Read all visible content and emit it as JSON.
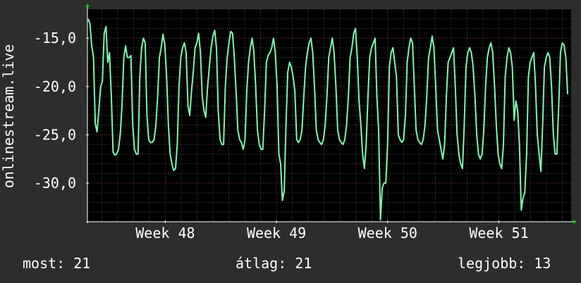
{
  "chart_data": {
    "type": "line",
    "ylabel": "onlinestream.live",
    "y_ticks": [
      -15.0,
      -20.0,
      -25.0,
      -30.0
    ],
    "y_tick_labels": [
      "-15,0",
      "-20,0",
      "-25,0",
      "-30,0"
    ],
    "ylim": [
      -34,
      -12
    ],
    "x_ticks": [
      {
        "label": "Week 48",
        "pos": 48
      },
      {
        "label": "Week 49",
        "pos": 49
      },
      {
        "label": "Week 50",
        "pos": 50
      },
      {
        "label": "Week 51",
        "pos": 51
      }
    ],
    "xlim": [
      47.3,
      51.65
    ],
    "grid": true,
    "colors": {
      "line": "#7ef7b0",
      "plot_bg": "#000000",
      "axis": "#ffffff",
      "arrow": "#00cc00",
      "minor_grid": "#4a4a4a",
      "major_grid": "#7a2e2e"
    },
    "series": [
      {
        "values": [
          -13.0,
          -13.5,
          -15.8,
          -17.0,
          -23.8,
          -24.7,
          -22.5,
          -20.0,
          -19.5,
          -14.5,
          -13.8,
          -17.5,
          -16.5,
          -21.0,
          -26.8,
          -27.1,
          -27.0,
          -26.5,
          -25.0,
          -22.0,
          -17.0,
          -15.8,
          -17.0,
          -17.0,
          -16.8,
          -24.0,
          -26.5,
          -27.0,
          -27.0,
          -19.0,
          -16.0,
          -15.0,
          -15.5,
          -23.0,
          -25.5,
          -25.8,
          -25.8,
          -25.5,
          -24.0,
          -21.0,
          -17.0,
          -16.0,
          -14.6,
          -15.7,
          -18.8,
          -24.0,
          -27.0,
          -28.0,
          -28.7,
          -28.5,
          -26.0,
          -20.0,
          -17.0,
          -16.0,
          -15.5,
          -16.5,
          -22.0,
          -23.0,
          -20.5,
          -18.5,
          -16.0,
          -15.5,
          -14.5,
          -16.5,
          -21.0,
          -22.5,
          -23.2,
          -20.0,
          -18.0,
          -16.0,
          -14.8,
          -14.2,
          -16.0,
          -22.5,
          -25.5,
          -26.0,
          -26.0,
          -20.0,
          -17.0,
          -15.5,
          -14.3,
          -14.5,
          -17.0,
          -20.5,
          -24.5,
          -25.5,
          -25.8,
          -26.5,
          -25.5,
          -20.5,
          -17.5,
          -16.0,
          -15.0,
          -16.5,
          -20.0,
          -24.5,
          -26.0,
          -26.5,
          -26.5,
          -22.5,
          -17.5,
          -16.8,
          -16.5,
          -16.0,
          -15.0,
          -16.5,
          -20.0,
          -27.0,
          -28.0,
          -31.8,
          -30.8,
          -24.0,
          -18.5,
          -17.5,
          -18.0,
          -19.0,
          -20.5,
          -25.5,
          -25.8,
          -25.5,
          -24.5,
          -21.0,
          -18.0,
          -16.5,
          -15.5,
          -15.0,
          -16.5,
          -20.0,
          -24.5,
          -25.5,
          -25.8,
          -26.0,
          -25.5,
          -24.0,
          -21.0,
          -17.0,
          -16.0,
          -15.0,
          -16.5,
          -20.0,
          -24.5,
          -25.5,
          -25.8,
          -26.0,
          -25.5,
          -24.0,
          -21.0,
          -17.0,
          -16.0,
          -14.5,
          -14.0,
          -17.0,
          -21.5,
          -24.0,
          -27.0,
          -28.5,
          -26.0,
          -21.0,
          -17.0,
          -16.0,
          -15.5,
          -15.0,
          -21.0,
          -24.5,
          -33.8,
          -30.5,
          -30.0,
          -30.0,
          -26.0,
          -18.0,
          -16.5,
          -16.0,
          -17.5,
          -19.0,
          -25.0,
          -25.5,
          -25.8,
          -25.5,
          -23.0,
          -17.5,
          -16.0,
          -15.0,
          -15.5,
          -20.0,
          -24.5,
          -25.5,
          -25.8,
          -26.0,
          -25.5,
          -24.0,
          -21.0,
          -17.0,
          -16.0,
          -14.8,
          -16.0,
          -20.0,
          -24.5,
          -25.5,
          -26.5,
          -27.5,
          -26.0,
          -21.0,
          -17.5,
          -17.0,
          -16.5,
          -16.0,
          -20.0,
          -25.0,
          -27.0,
          -28.0,
          -28.5,
          -24.0,
          -18.0,
          -16.5,
          -16.0,
          -16.5,
          -18.0,
          -21.0,
          -25.0,
          -27.0,
          -27.5,
          -27.0,
          -24.5,
          -20.0,
          -17.0,
          -16.0,
          -15.5,
          -16.5,
          -20.0,
          -24.0,
          -27.0,
          -28.0,
          -28.5,
          -26.0,
          -19.0,
          -17.0,
          -16.0,
          -16.5,
          -18.0,
          -23.5,
          -21.5,
          -22.5,
          -26.0,
          -32.8,
          -31.5,
          -31.0,
          -27.0,
          -19.0,
          -17.5,
          -17.0,
          -16.5,
          -20.0,
          -25.0,
          -27.0,
          -28.8,
          -24.0,
          -18.0,
          -17.0,
          -16.5,
          -17.0,
          -20.0,
          -25.0,
          -27.0,
          -27.0,
          -22.0,
          -16.5,
          -15.5,
          -15.7,
          -17.0,
          -20.8
        ]
      }
    ]
  },
  "stats": {
    "now": "most: 21",
    "avg": "átlag: 21",
    "best": "legjobb: 13"
  }
}
